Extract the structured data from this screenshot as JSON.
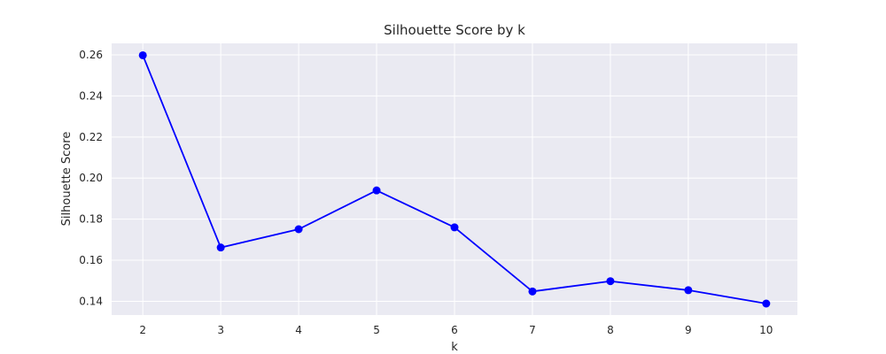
{
  "chart_data": {
    "type": "line",
    "title": "Silhouette Score by k",
    "xlabel": "k",
    "ylabel": "Silhouette Score",
    "x": [
      2,
      3,
      4,
      5,
      6,
      7,
      8,
      9,
      10
    ],
    "xticks": [
      "2",
      "3",
      "4",
      "5",
      "6",
      "7",
      "8",
      "9",
      "10"
    ],
    "yticks": [
      "0.14",
      "0.16",
      "0.18",
      "0.20",
      "0.22",
      "0.24",
      "0.26"
    ],
    "xlim": [
      1.6,
      10.4
    ],
    "ylim": [
      0.1333,
      0.2656
    ],
    "grid": true,
    "background": "#eaeaf2",
    "grid_color": "#ffffff",
    "series": [
      {
        "color": "#0000ff",
        "marker": "circle",
        "values": [
          0.2598,
          0.1662,
          0.1751,
          0.194,
          0.176,
          0.1448,
          0.1498,
          0.1454,
          0.1389
        ]
      }
    ]
  }
}
